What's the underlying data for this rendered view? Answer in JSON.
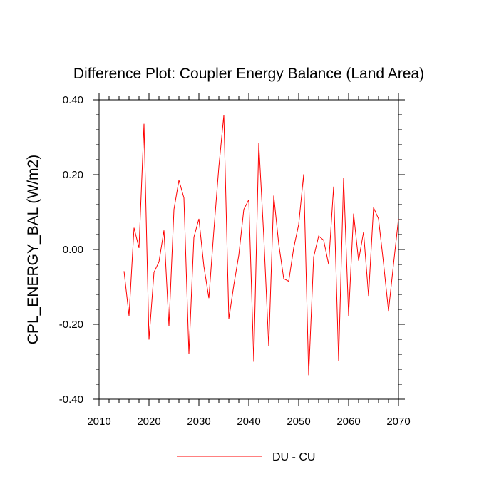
{
  "chart_data": {
    "type": "line",
    "title": "Difference Plot: Coupler Energy Balance (Land Area)",
    "xlabel": "",
    "ylabel": "CPL_ENERGY_BAL  (W/m2)",
    "xlim": [
      2010,
      2070
    ],
    "ylim": [
      -0.4,
      0.4
    ],
    "xticks": [
      2010,
      2020,
      2030,
      2040,
      2050,
      2060,
      2070
    ],
    "xtick_labels": [
      "2010",
      "2020",
      "2030",
      "2040",
      "2050",
      "2060",
      "2070"
    ],
    "yticks": [
      -0.4,
      -0.2,
      0.0,
      0.2,
      0.4
    ],
    "ytick_labels": [
      "-0.40",
      "-0.20",
      "0.00",
      "0.20",
      "0.40"
    ],
    "grid": false,
    "legend_position": "bottom-center",
    "series": [
      {
        "name": "DU - CU",
        "color": "#ff0000",
        "x": [
          2015,
          2016,
          2017,
          2018,
          2019,
          2020,
          2021,
          2022,
          2023,
          2024,
          2025,
          2026,
          2027,
          2028,
          2029,
          2030,
          2031,
          2032,
          2033,
          2034,
          2035,
          2036,
          2037,
          2038,
          2039,
          2040,
          2041,
          2042,
          2043,
          2044,
          2045,
          2046,
          2047,
          2048,
          2049,
          2050,
          2051,
          2052,
          2053,
          2054,
          2055,
          2056,
          2057,
          2058,
          2059,
          2060,
          2061,
          2062,
          2063,
          2064,
          2065,
          2066,
          2067,
          2068,
          2069,
          2070
        ],
        "values": [
          -0.058,
          -0.177,
          0.058,
          0.004,
          0.336,
          -0.241,
          -0.061,
          -0.033,
          0.051,
          -0.205,
          0.107,
          0.185,
          0.138,
          -0.279,
          0.033,
          0.082,
          -0.045,
          -0.13,
          0.051,
          0.221,
          0.359,
          -0.185,
          -0.095,
          -0.015,
          0.107,
          0.133,
          -0.3,
          0.284,
          0.036,
          -0.259,
          0.144,
          0.015,
          -0.078,
          -0.085,
          0.004,
          0.067,
          0.201,
          -0.336,
          -0.02,
          0.036,
          0.025,
          -0.04,
          0.168,
          -0.297,
          0.192,
          -0.177,
          0.096,
          -0.03,
          0.047,
          -0.124,
          0.112,
          0.082,
          -0.036,
          -0.164,
          -0.04,
          0.082
        ]
      }
    ]
  }
}
